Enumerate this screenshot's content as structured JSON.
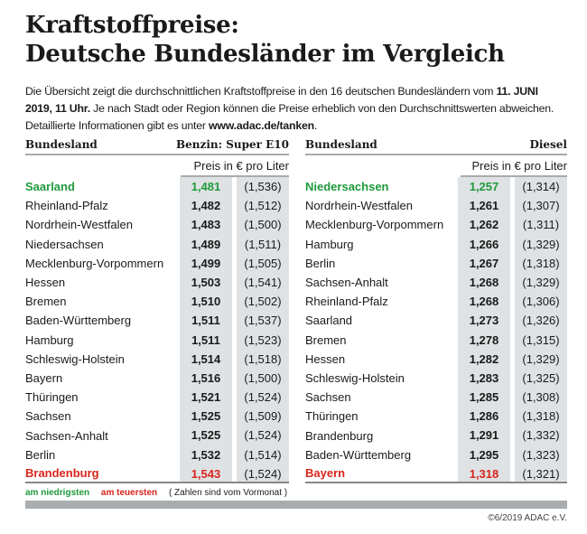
{
  "title": [
    "Kraftstoffpreise:",
    "Deutsche Bundesländer im Vergleich"
  ],
  "intro": {
    "t1": "Die Übersicht zeigt die durchschnittlichen Kraftstoffpreise in den 16 deutschen Bundesländern vom ",
    "b1": "11. JUNI 2019, 11 Uhr.",
    "t2": " Je nach Stadt oder Region können die Preise erheblich von den Durchschnittswerten abweichen. Detaillierte Informationen gibt es unter ",
    "b2": "www.adac.de/tanken",
    "t3": "."
  },
  "colors": {
    "lowest": "#1e9a3c",
    "highest": "#d9241c",
    "cell_bg": "#dfe2e4"
  },
  "tables": [
    {
      "col_name": "Bundesland",
      "col_fuel": "Benzin:  Super E10",
      "unit": "Preis in € pro Liter",
      "rows": [
        [
          "Saarland",
          "1,481",
          "(1,536)",
          "low"
        ],
        [
          "Rheinland-Pfalz",
          "1,482",
          "(1,512)",
          ""
        ],
        [
          "Nordrhein-Westfalen",
          "1,483",
          "(1,500)",
          ""
        ],
        [
          "Niedersachsen",
          "1,489",
          "(1,511)",
          ""
        ],
        [
          "Mecklenburg-Vorpommern",
          "1,499",
          "(1,505)",
          ""
        ],
        [
          "Hessen",
          "1,503",
          "(1,541)",
          ""
        ],
        [
          "Bremen",
          "1,510",
          "(1,502)",
          ""
        ],
        [
          "Baden-Württemberg",
          "1,511",
          "(1,537)",
          ""
        ],
        [
          "Hamburg",
          "1,511",
          "(1,523)",
          ""
        ],
        [
          "Schleswig-Holstein",
          "1,514",
          "(1,518)",
          ""
        ],
        [
          "Bayern",
          "1,516",
          "(1,500)",
          ""
        ],
        [
          "Thüringen",
          "1,521",
          "(1,524)",
          ""
        ],
        [
          "Sachsen",
          "1,525",
          "(1,509)",
          ""
        ],
        [
          "Sachsen-Anhalt",
          "1,525",
          "(1,524)",
          ""
        ],
        [
          "Berlin",
          "1,532",
          "(1,514)",
          ""
        ],
        [
          "Brandenburg",
          "1,543",
          "(1,524)",
          "high"
        ]
      ]
    },
    {
      "col_name": "Bundesland",
      "col_fuel": "Diesel",
      "unit": "Preis in € pro Liter",
      "rows": [
        [
          "Niedersachsen",
          "1,257",
          "(1,314)",
          "low"
        ],
        [
          "Nordrhein-Westfalen",
          "1,261",
          "(1,307)",
          ""
        ],
        [
          "Mecklenburg-Vorpommern",
          "1,262",
          "(1,311)",
          ""
        ],
        [
          "Hamburg",
          "1,266",
          "(1,329)",
          ""
        ],
        [
          "Berlin",
          "1,267",
          "(1,318)",
          ""
        ],
        [
          "Sachsen-Anhalt",
          "1,268",
          "(1,329)",
          ""
        ],
        [
          "Rheinland-Pfalz",
          "1,268",
          "(1,306)",
          ""
        ],
        [
          "Saarland",
          "1,273",
          "(1,326)",
          ""
        ],
        [
          "Bremen",
          "1,278",
          "(1,315)",
          ""
        ],
        [
          "Hessen",
          "1,282",
          "(1,329)",
          ""
        ],
        [
          "Schleswig-Holstein",
          "1,283",
          "(1,325)",
          ""
        ],
        [
          "Sachsen",
          "1,285",
          "(1,308)",
          ""
        ],
        [
          "Thüringen",
          "1,286",
          "(1,318)",
          ""
        ],
        [
          "Brandenburg",
          "1,291",
          "(1,332)",
          ""
        ],
        [
          "Baden-Württemberg",
          "1,295",
          "(1,323)",
          ""
        ],
        [
          "Bayern",
          "1,318",
          "(1,321)",
          "high"
        ]
      ]
    }
  ],
  "legend": {
    "low": "am niedrigsten",
    "high": "am teuersten",
    "note": "( Zahlen sind vom Vormonat )"
  },
  "copyright": "©6/2019 ADAC e.V."
}
